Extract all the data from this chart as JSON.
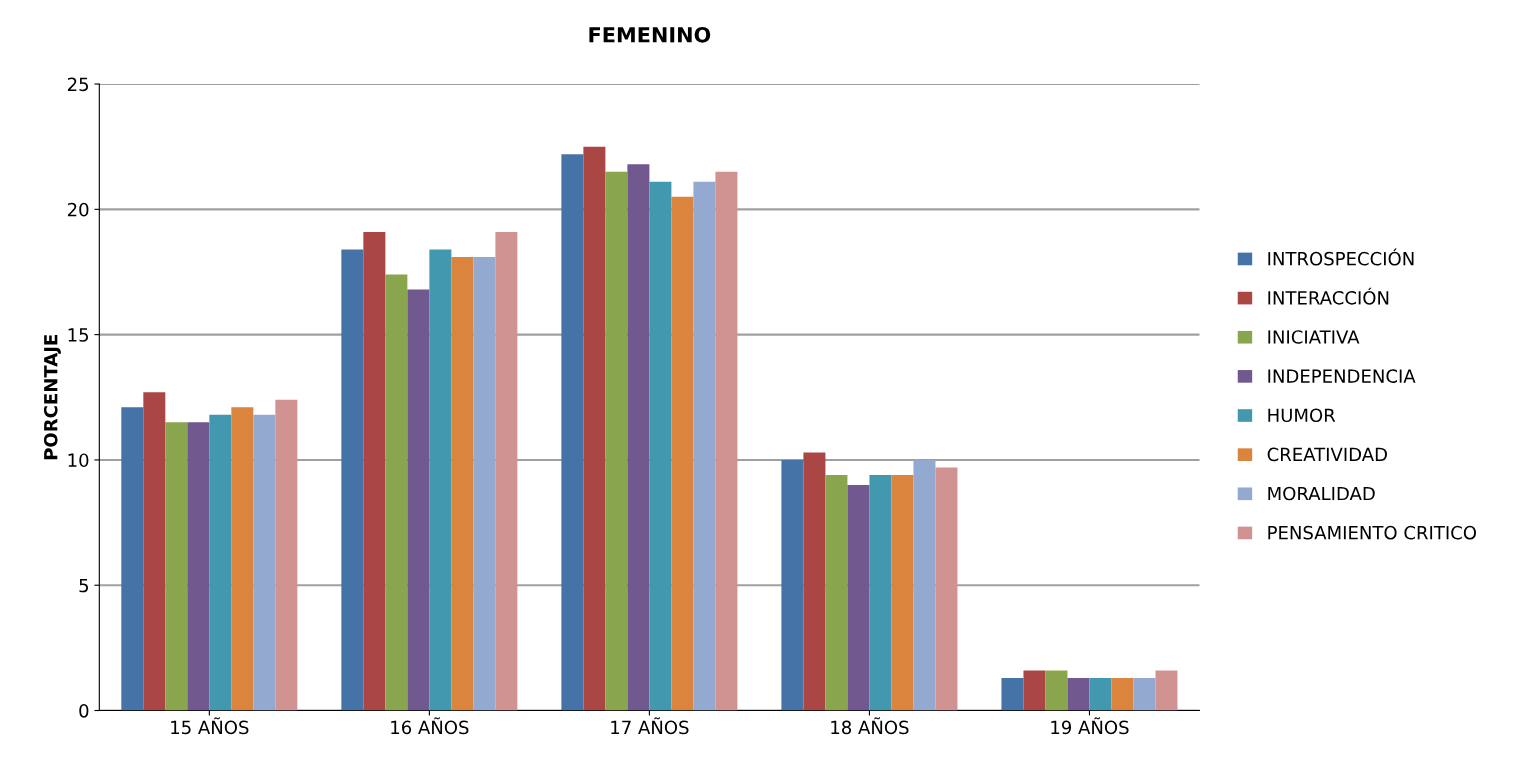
{
  "chart_data": {
    "type": "bar",
    "title": "FEMENINO",
    "ylabel": "PORCENTAJE",
    "categories": [
      "15 AÑOS",
      "16 AÑOS",
      "17 AÑOS",
      "18 AÑOS",
      "19 AÑOS"
    ],
    "series": [
      {
        "name": "INTROSPECCIÓN",
        "color": "#4572a7",
        "values": [
          12.1,
          18.4,
          22.2,
          10.0,
          1.3
        ]
      },
      {
        "name": "INTERACCIÓN",
        "color": "#aa4643",
        "values": [
          12.7,
          19.1,
          22.5,
          10.3,
          1.6
        ]
      },
      {
        "name": "INICIATIVA",
        "color": "#89a54e",
        "values": [
          11.5,
          17.4,
          21.5,
          9.4,
          1.6
        ]
      },
      {
        "name": "INDEPENDENCIA",
        "color": "#71588f",
        "values": [
          11.5,
          16.8,
          21.8,
          9.0,
          1.3
        ]
      },
      {
        "name": "HUMOR",
        "color": "#4198af",
        "values": [
          11.8,
          18.4,
          21.1,
          9.4,
          1.3
        ]
      },
      {
        "name": "CREATIVIDAD",
        "color": "#db843d",
        "values": [
          12.1,
          18.1,
          20.5,
          9.4,
          1.3
        ]
      },
      {
        "name": "MORALIDAD",
        "color": "#93a9cf",
        "values": [
          11.8,
          18.1,
          21.1,
          10.0,
          1.3
        ]
      },
      {
        "name": "PENSAMIENTO CRITICO",
        "color": "#d19392",
        "values": [
          12.4,
          19.1,
          21.5,
          9.7,
          1.6
        ]
      }
    ],
    "ylim": [
      0,
      25
    ],
    "yticks": [
      0,
      5,
      10,
      15,
      20,
      25
    ],
    "grid": "y",
    "legend": "right"
  }
}
